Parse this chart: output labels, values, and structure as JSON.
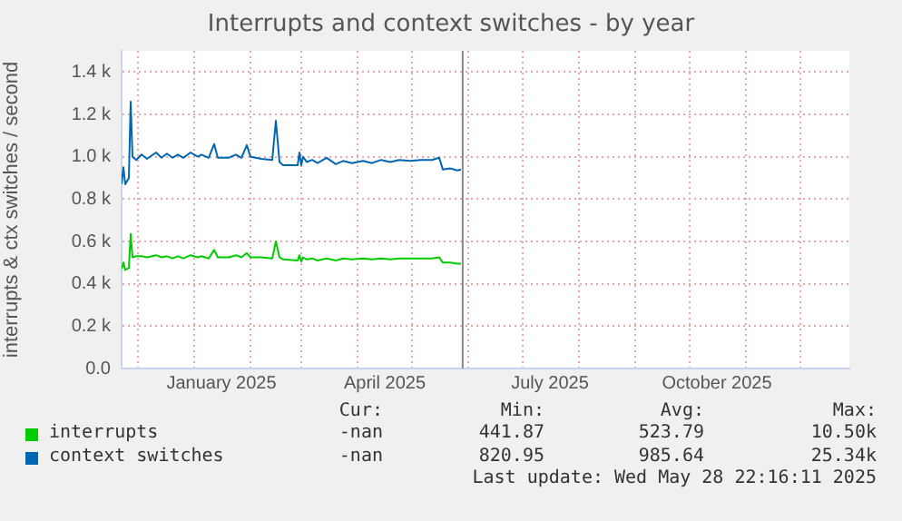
{
  "chart_data": {
    "type": "line",
    "title": "Interrupts and context switches - by year",
    "ylabel": "interrupts & ctx switches / second",
    "xlim": [
      "2024-11-22",
      "2025-12-28"
    ],
    "xticks": [
      {
        "value": "2024-12-01",
        "label": null
      },
      {
        "value": "2025-01-01",
        "label": null
      },
      {
        "value": "2025-01-16",
        "label": "January 2025"
      },
      {
        "value": "2025-02-01",
        "label": null
      },
      {
        "value": "2025-03-01",
        "label": null
      },
      {
        "value": "2025-04-01",
        "label": null
      },
      {
        "value": "2025-04-16",
        "label": "April 2025"
      },
      {
        "value": "2025-05-01",
        "label": null
      },
      {
        "value": "2025-06-01",
        "label": null
      },
      {
        "value": "2025-07-01",
        "label": null
      },
      {
        "value": "2025-07-16",
        "label": "July 2025"
      },
      {
        "value": "2025-08-01",
        "label": null
      },
      {
        "value": "2025-09-01",
        "label": null
      },
      {
        "value": "2025-10-01",
        "label": null
      },
      {
        "value": "2025-10-16",
        "label": "October 2025"
      },
      {
        "value": "2025-11-01",
        "label": null
      },
      {
        "value": "2025-12-01",
        "label": null
      }
    ],
    "ylim": [
      0,
      1500
    ],
    "yticks": [
      {
        "value": 0,
        "label": "0.0"
      },
      {
        "value": 200,
        "label": "0.2 k"
      },
      {
        "value": 400,
        "label": "0.4 k"
      },
      {
        "value": 600,
        "label": "0.6 k"
      },
      {
        "value": 800,
        "label": "0.8 k"
      },
      {
        "value": 1000,
        "label": "1.0 k"
      },
      {
        "value": 1200,
        "label": "1.2 k"
      },
      {
        "value": 1400,
        "label": "1.4 k"
      }
    ],
    "grid": true,
    "legend": "bottom",
    "marker": "none",
    "line_style": "solid",
    "ref_lines": [
      {
        "axis": "x",
        "value": "2025-05-28T22:16",
        "color": "#888888"
      }
    ],
    "x": [
      "2024-11-22",
      "2024-11-23",
      "2024-11-24",
      "2024-11-26",
      "2024-11-27",
      "2024-11-28",
      "2024-11-30",
      "2024-12-03",
      "2024-12-06",
      "2024-12-11",
      "2024-12-14",
      "2024-12-17",
      "2024-12-20",
      "2024-12-23",
      "2024-12-26",
      "2024-12-30",
      "2025-01-03",
      "2025-01-05",
      "2025-01-09",
      "2025-01-12",
      "2025-01-14",
      "2025-01-20",
      "2025-01-24",
      "2025-01-27",
      "2025-01-30",
      "2025-02-01",
      "2025-02-07",
      "2025-02-13",
      "2025-02-15",
      "2025-02-17",
      "2025-02-19",
      "2025-02-27",
      "2025-02-28",
      "2025-03-01",
      "2025-03-02",
      "2025-03-04",
      "2025-03-07",
      "2025-03-10",
      "2025-03-15",
      "2025-03-20",
      "2025-03-24",
      "2025-03-29",
      "2025-04-04",
      "2025-04-09",
      "2025-04-14",
      "2025-04-19",
      "2025-04-24",
      "2025-04-30",
      "2025-05-06",
      "2025-05-12",
      "2025-05-16",
      "2025-05-18",
      "2025-05-22",
      "2025-05-26",
      "2025-05-28"
    ],
    "series": [
      {
        "name": "interrupts",
        "color": "#00cc00",
        "values": [
          470,
          500,
          465,
          475,
          635,
          525,
          530,
          530,
          525,
          535,
          525,
          530,
          520,
          530,
          520,
          535,
          525,
          530,
          520,
          560,
          525,
          525,
          535,
          525,
          545,
          525,
          525,
          520,
          600,
          525,
          515,
          510,
          535,
          505,
          525,
          515,
          520,
          510,
          520,
          510,
          520,
          515,
          520,
          515,
          520,
          515,
          520,
          520,
          520,
          520,
          525,
          500,
          500,
          495,
          495
        ]
      },
      {
        "name": "context switches",
        "color": "#0066b3",
        "values": [
          870,
          950,
          870,
          900,
          1260,
          1000,
          985,
          1010,
          990,
          1020,
          995,
          1015,
          995,
          1010,
          995,
          1020,
          1000,
          1010,
          995,
          1060,
          995,
          995,
          1010,
          995,
          1055,
          1000,
          990,
          985,
          1170,
          975,
          960,
          960,
          1020,
          960,
          1000,
          975,
          985,
          970,
          995,
          965,
          980,
          970,
          980,
          970,
          985,
          975,
          985,
          980,
          985,
          985,
          995,
          940,
          945,
          935,
          940
        ]
      }
    ],
    "annotations": [
      "Cur:",
      "Min:",
      "Avg:",
      "Max:",
      "-nan",
      "441.87",
      "523.79",
      "10.50k",
      "-nan",
      "820.95",
      "985.64",
      "25.34k",
      "Last update: Wed May 28 22:16:11 2025"
    ]
  }
}
